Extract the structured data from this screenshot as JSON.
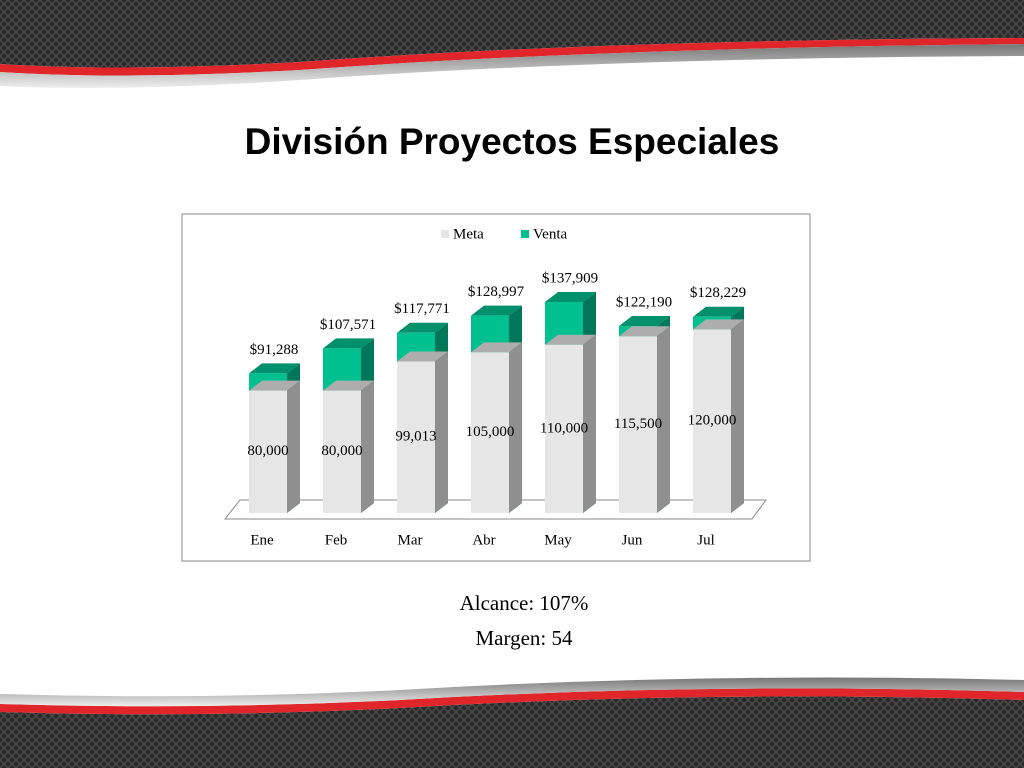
{
  "chart_data": {
    "type": "bar3d-overlap",
    "title": "División Proyectos Especiales",
    "categories": [
      "Ene",
      "Feb",
      "Mar",
      "Abr",
      "May",
      "Jun",
      "Jul"
    ],
    "series": [
      {
        "name": "Venta",
        "color": "#00c08f",
        "values": [
          91288,
          107571,
          117771,
          128997,
          137909,
          122190,
          128229
        ],
        "value_labels": [
          "$91,288",
          "$107,571",
          "$117,771",
          "$128,997",
          "$137,909",
          "$122,190",
          "$128,229"
        ]
      },
      {
        "name": "Meta",
        "color": "#e6e6e6",
        "values": [
          80000,
          80000,
          99013,
          105000,
          110000,
          115500,
          120000
        ],
        "value_labels": [
          "80,000",
          "80,000",
          "99,013",
          "105,000",
          "110,000",
          "115,500",
          "120,000"
        ]
      }
    ],
    "legend_order": [
      "Meta",
      "Venta"
    ],
    "notes": [
      "Alcance: 107%",
      "Margen: 54"
    ]
  }
}
